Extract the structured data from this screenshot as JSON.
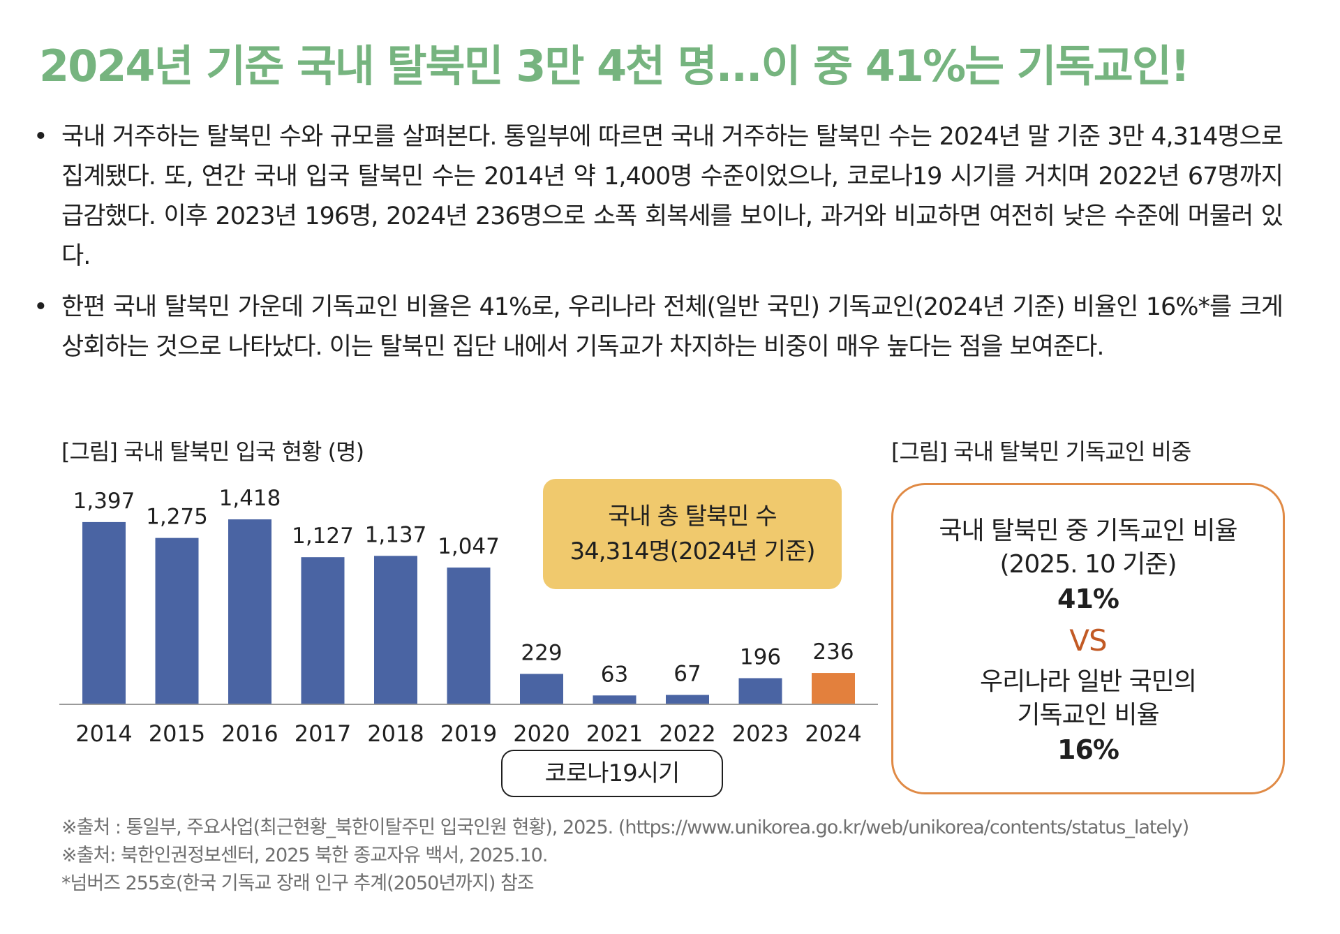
{
  "title": "2024년 기준 국내 탈북민 3만 4천 명...이 중 41%는 기독교인!",
  "bullets": [
    "국내 거주하는 탈북민 수와 규모를 살펴본다. 통일부에 따르면 국내 거주하는 탈북민 수는 2024년 말 기준 3만 4,314명으로 집계됐다. 또, 연간 국내 입국 탈북민 수는 2014년 약 1,400명 수준이었으나, 코로나19 시기를 거치며 2022년 67명까지 급감했다. 이후 2023년 196명, 2024년 236명으로 소폭 회복세를 보이나, 과거와 비교하면 여전히 낮은 수준에 머물러 있다.",
    "한편 국내 탈북민 가운데 기독교인 비율은 41%로, 우리나라 전체(일반 국민) 기독교인(2024년 기준) 비율인 16%*를 크게 상회하는 것으로 나타났다. 이는 탈북민 집단 내에서 기독교가 차지하는 비중이 매우 높다는 점을 보여준다."
  ],
  "bullet_symbol": "•",
  "figure1_caption": "[그림] 국내 탈북민 입국 현황 (명)",
  "figure2_caption": "[그림] 국내 탈북민 기독교인 비중",
  "callout": {
    "line1": "국내 총 탈북민 수",
    "line2": "34,314명(2024년 기준)"
  },
  "covid_label": "코로나19시기",
  "comparison": {
    "line1": "국내 탈북민 중 기독교인 비율",
    "line2": "(2025. 10 기준)",
    "value1": "41%",
    "vs": "VS",
    "line3": "우리나라 일반 국민의",
    "line4": "기독교인 비율",
    "value2": "16%"
  },
  "sources": [
    "※출처 : 통일부, 주요사업(최근현황_북한이탈주민 입국인원 현황), 2025. (https://www.unikorea.go.kr/web/unikorea/contents/status_lately)",
    "※출처: 북한인권정보센터, 2025 북한 종교자유 백서, 2025.10.",
    "*넘버즈 255호(한국 기독교 장래 인구 추계(2050년까지) 참조"
  ],
  "colors": {
    "title": "#76b47f",
    "bar": "#4a64a3",
    "bar_highlight": "#e3803d",
    "callout_bg": "#f0c96d",
    "compare_border": "#e08a45",
    "vs": "#c25a25"
  },
  "chart_data": {
    "type": "bar",
    "categories": [
      "2014",
      "2015",
      "2016",
      "2017",
      "2018",
      "2019",
      "2020",
      "2021",
      "2022",
      "2023",
      "2024"
    ],
    "values": [
      1397,
      1275,
      1418,
      1127,
      1137,
      1047,
      229,
      63,
      67,
      196,
      236
    ],
    "value_labels": [
      "1,397",
      "1,275",
      "1,418",
      "1,127",
      "1,137",
      "1,047",
      "229",
      "63",
      "67",
      "196",
      "236"
    ],
    "highlight_category": "2024",
    "ylim": [
      0,
      1418
    ],
    "grid": false,
    "legend": "none"
  }
}
